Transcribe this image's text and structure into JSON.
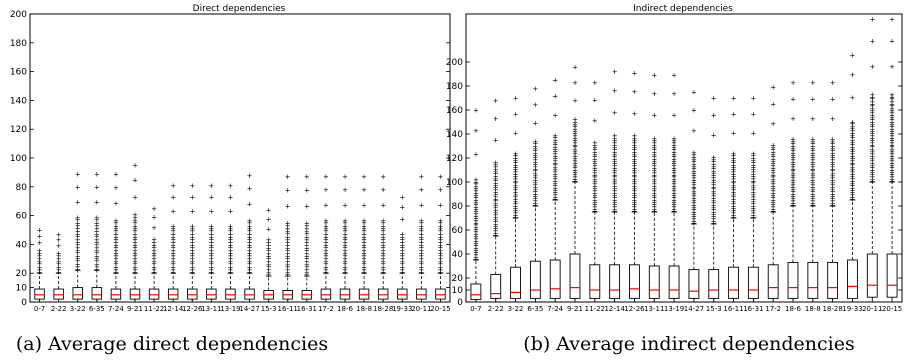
{
  "chart_data": [
    {
      "type": "box",
      "title": "Direct dependencies",
      "caption": "(a) Average direct dependencies",
      "ylim": [
        0,
        200
      ],
      "yticks": [
        10,
        20,
        40,
        60,
        80,
        100,
        120,
        140,
        160,
        180,
        200
      ],
      "categories": [
        "0-7",
        "2-22",
        "3-22",
        "6-35",
        "7-24",
        "9-21",
        "11-22",
        "12-14",
        "12-26",
        "13-11",
        "13-19",
        "14-27",
        "15-3",
        "16-11",
        "16-31",
        "17-2",
        "18-6",
        "18-8",
        "18-28",
        "19-33",
        "20-11",
        "20-15"
      ],
      "boxes": {
        "q1": [
          2,
          2,
          2,
          2,
          2,
          2,
          2,
          2,
          2,
          2,
          2,
          2,
          2,
          2,
          2,
          2,
          2,
          2,
          2,
          2,
          2,
          2
        ],
        "median": [
          5,
          5,
          5,
          5,
          5,
          5,
          5,
          5,
          5,
          5,
          5,
          5,
          5,
          5,
          5,
          5,
          5,
          5,
          5,
          5,
          5,
          5
        ],
        "q3": [
          9,
          9,
          10,
          10,
          9,
          9,
          9,
          9,
          9,
          9,
          9,
          9,
          8,
          8,
          8,
          9,
          9,
          9,
          9,
          9,
          9,
          9
        ],
        "whisker_low": [
          0,
          0,
          0,
          0,
          0,
          0,
          0,
          0,
          0,
          0,
          0,
          0,
          0,
          0,
          0,
          0,
          0,
          0,
          0,
          0,
          0,
          0
        ],
        "whisker_high": [
          20,
          20,
          22,
          22,
          20,
          20,
          20,
          20,
          20,
          20,
          20,
          20,
          18,
          18,
          18,
          20,
          20,
          20,
          20,
          20,
          20,
          20
        ],
        "flier_max": [
          50,
          47,
          89,
          89,
          89,
          95,
          65,
          81,
          81,
          81,
          81,
          88,
          64,
          87,
          87,
          87,
          87,
          87,
          87,
          73,
          87,
          87
        ]
      }
    },
    {
      "type": "box",
      "title": "Indirect dependencies",
      "caption": "(b) Average indirect dependencies",
      "ylim": [
        0,
        240
      ],
      "yticks": [
        10,
        20,
        40,
        60,
        80,
        100,
        120,
        140,
        160,
        180,
        200
      ],
      "categories": [
        "0-7",
        "2-22",
        "3-22",
        "6-35",
        "7-24",
        "9-21",
        "11-22",
        "12-14",
        "12-26",
        "13-11",
        "13-19",
        "14-27",
        "15-3",
        "16-11",
        "16-31",
        "17-2",
        "18-6",
        "18-8",
        "18-28",
        "19-33",
        "20-11",
        "20-15"
      ],
      "boxes": {
        "q1": [
          2,
          3,
          3,
          3,
          3,
          3,
          3,
          3,
          3,
          3,
          3,
          3,
          3,
          3,
          3,
          3,
          3,
          3,
          3,
          3,
          4,
          4
        ],
        "median": [
          6,
          7,
          8,
          10,
          11,
          12,
          10,
          10,
          11,
          10,
          10,
          9,
          10,
          10,
          10,
          12,
          12,
          12,
          12,
          13,
          14,
          14
        ],
        "q3": [
          15,
          23,
          29,
          34,
          35,
          40,
          31,
          31,
          31,
          30,
          30,
          27,
          27,
          29,
          29,
          31,
          33,
          33,
          33,
          35,
          40,
          40
        ],
        "whisker_low": [
          0,
          0,
          0,
          0,
          0,
          0,
          0,
          0,
          0,
          0,
          0,
          0,
          0,
          0,
          0,
          0,
          0,
          0,
          0,
          0,
          0,
          0
        ],
        "whisker_high": [
          35,
          55,
          70,
          80,
          85,
          100,
          75,
          75,
          75,
          75,
          75,
          65,
          65,
          70,
          70,
          75,
          80,
          80,
          80,
          85,
          100,
          100
        ],
        "flier_max": [
          160,
          168,
          170,
          178,
          185,
          196,
          183,
          192,
          191,
          189,
          189,
          175,
          170,
          170,
          170,
          179,
          183,
          183,
          183,
          206,
          236,
          236
        ]
      }
    }
  ],
  "colors": {
    "box": "#000000",
    "median": "#ff0000",
    "flier": "#000000"
  }
}
